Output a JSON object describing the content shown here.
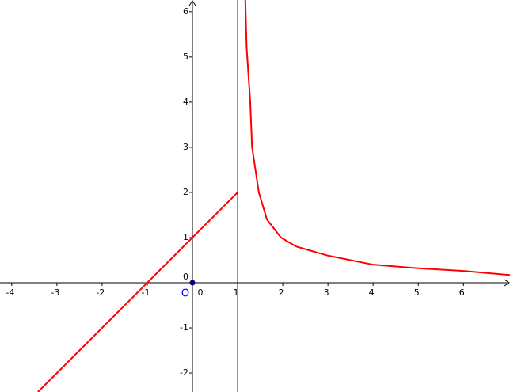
{
  "chart_data": {
    "type": "line",
    "xlim": [
      -4.26,
      7.03
    ],
    "ylim": [
      -2.42,
      6.26
    ],
    "xticks": [
      -4,
      -3,
      -2,
      -1,
      0,
      1,
      2,
      3,
      4,
      5,
      6
    ],
    "yticks": [
      -2,
      -1,
      0,
      1,
      2,
      3,
      4,
      5,
      6
    ],
    "annotations": [
      "O"
    ],
    "series": [
      {
        "color": "#ff0000",
        "x": [
          -3.42,
          1
        ],
        "values": [
          -2.42,
          2
        ]
      },
      {
        "color": "#ff0000",
        "x": [
          1.17,
          1.2,
          1.28,
          1.32,
          1.47,
          1.65,
          1.96,
          2.3,
          3,
          4,
          5,
          6,
          7.03
        ],
        "values": [
          6.26,
          5.2,
          4,
          3,
          2,
          1.4,
          1,
          0.8,
          0.6,
          0.4,
          0.32,
          0.26,
          0.17
        ]
      },
      {
        "color": "#0000ff",
        "x": [
          1,
          1
        ],
        "values": [
          -2.42,
          6.26
        ]
      }
    ],
    "points": {
      "color": "#00007f",
      "x": [
        0
      ],
      "values": [
        0
      ]
    }
  }
}
